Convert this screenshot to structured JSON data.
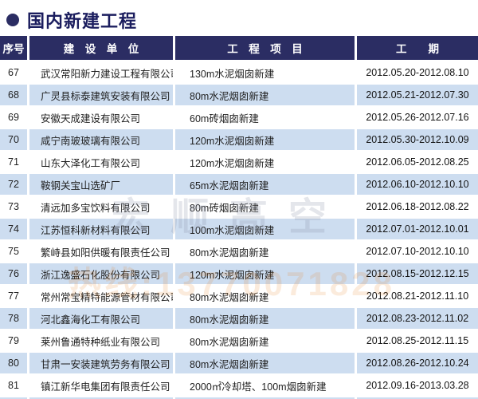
{
  "title": "国内新建工程",
  "colors": {
    "navy": "#2b2d63",
    "title_navy": "#1b1d5e",
    "row_highlight": "#cdddf0"
  },
  "watermark": {
    "logo_text": "宏顺高空",
    "phone_text": "热线:13770071828"
  },
  "table": {
    "headers": [
      "序号",
      "建　设　单　位",
      "工　程　项　目",
      "工　　期"
    ],
    "rows": [
      {
        "no": "67",
        "company": "武汉常阳新力建设工程有限公司",
        "project": "130m水泥烟囱新建",
        "period": "2012.05.20-2012.08.10",
        "highlighted": false
      },
      {
        "no": "68",
        "company": "广灵县标泰建筑安装有限公司",
        "project": "80m水泥烟囱新建",
        "period": "2012.05.21-2012.07.30",
        "highlighted": true
      },
      {
        "no": "69",
        "company": "安徽天成建设有限公司",
        "project": "60m砖烟囱新建",
        "period": "2012.05.26-2012.07.16",
        "highlighted": false
      },
      {
        "no": "70",
        "company": "咸宁南玻玻璃有限公司",
        "project": "120m水泥烟囱新建",
        "period": "2012.05.30-2012.10.09",
        "highlighted": true
      },
      {
        "no": "71",
        "company": "山东大泽化工有限公司",
        "project": "120m水泥烟囱新建",
        "period": "2012.06.05-2012.08.25",
        "highlighted": false
      },
      {
        "no": "72",
        "company": "鞍钢关宝山选矿厂",
        "project": "65m水泥烟囱新建",
        "period": "2012.06.10-2012.10.10",
        "highlighted": true
      },
      {
        "no": "73",
        "company": "清远加多宝饮料有限公司",
        "project": "80m砖烟囱新建",
        "period": "2012.06.18-2012.08.22",
        "highlighted": false
      },
      {
        "no": "74",
        "company": "江苏恒科新材料有限公司",
        "project": "100m水泥烟囱新建",
        "period": "2012.07.01-2012.10.01",
        "highlighted": true
      },
      {
        "no": "75",
        "company": "繁峙县如阳供暖有限责任公司",
        "project": "80m水泥烟囱新建",
        "period": "2012.07.10-2012.10.10",
        "highlighted": false
      },
      {
        "no": "76",
        "company": "浙江逸盛石化股份有限公司",
        "project": "120m水泥烟囱新建",
        "period": "2012.08.15-2012.12.15",
        "highlighted": true
      },
      {
        "no": "77",
        "company": "常州常宝精特能源管材有限公司",
        "project": "80m水泥烟囱新建",
        "period": "2012.08.21-2012.11.10",
        "highlighted": false
      },
      {
        "no": "78",
        "company": "河北鑫海化工有限公司",
        "project": "80m水泥烟囱新建",
        "period": "2012.08.23-2012.11.02",
        "highlighted": true
      },
      {
        "no": "79",
        "company": "莱州鲁通特种纸业有限公司",
        "project": "80m水泥烟囱新建",
        "period": "2012.08.25-2012.11.15",
        "highlighted": false
      },
      {
        "no": "80",
        "company": "甘肃一安装建筑劳务有限公司",
        "project": "80m水泥烟囱新建",
        "period": "2012.08.26-2012.10.24",
        "highlighted": true
      },
      {
        "no": "81",
        "company": "镇江新华电集团有限责任公司",
        "project": "2000㎡冷却塔、100m烟囱新建",
        "period": "2012.09.16-2013.03.28",
        "highlighted": false
      }
    ]
  }
}
